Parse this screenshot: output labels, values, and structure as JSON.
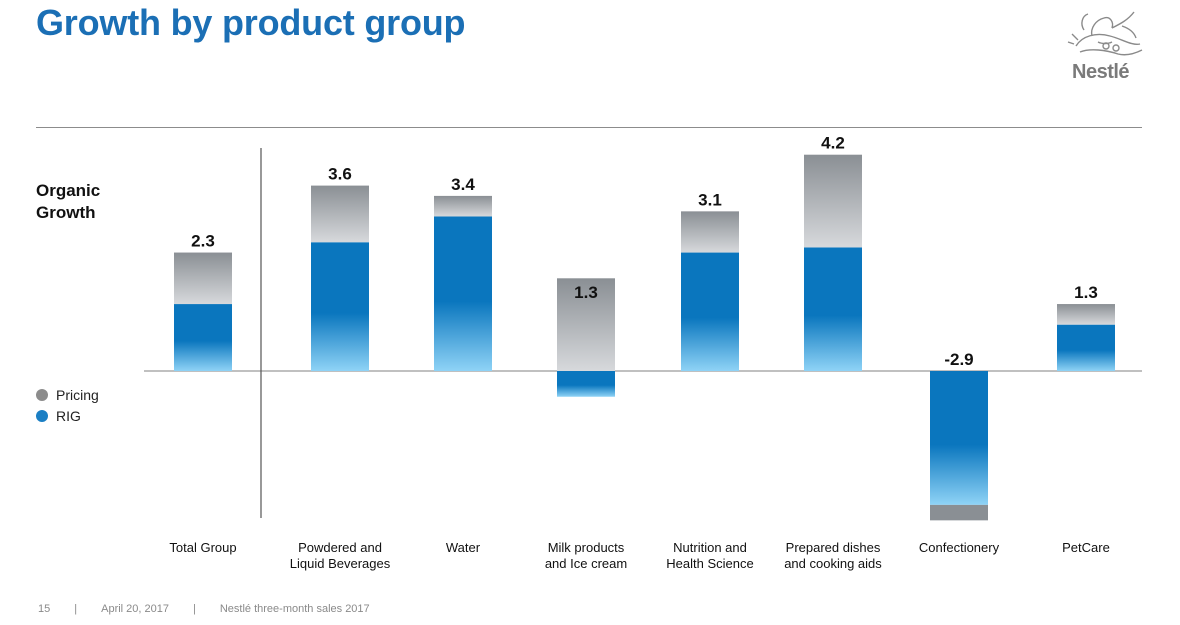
{
  "header": {
    "title": "Growth by product group",
    "logo_text": "Nestlé"
  },
  "chart_labels": {
    "organic_growth": "Organic\nGrowth"
  },
  "legend": [
    {
      "label": "Pricing",
      "color": "#8c8c8c"
    },
    {
      "label": "RIG",
      "color": "#1b7fc4"
    }
  ],
  "footer": {
    "page": "15",
    "date": "April 20, 2017",
    "doc": "Nestlé three-month sales 2017"
  },
  "colors": {
    "brand_blue": "#1b6fb5",
    "rig_top": "#0a76be",
    "rig_bottom": "#8fd3f6",
    "pricing_top": "#8a8f94",
    "pricing_bottom": "#d7d9dc"
  },
  "chart_data": {
    "type": "bar",
    "stacked": true,
    "title": "Growth by product group",
    "ylabel": "Organic Growth",
    "categories": [
      "Total Group",
      "Powdered and\nLiquid Beverages",
      "Water",
      "Milk products\nand Ice cream",
      "Nutrition and\nHealth Science",
      "Prepared dishes\nand cooking aids",
      "Confectionery",
      "PetCare"
    ],
    "totals": [
      2.3,
      3.6,
      3.4,
      1.3,
      3.1,
      4.2,
      -2.9,
      1.3
    ],
    "totals_labels": [
      "2.3",
      "3.6",
      "3.4",
      "1.3",
      "3.1",
      "4.2",
      "-2.9",
      "1.3"
    ],
    "series": [
      {
        "name": "RIG",
        "values": [
          1.3,
          2.5,
          3.0,
          -0.5,
          2.3,
          2.4,
          -2.6,
          0.9
        ]
      },
      {
        "name": "Pricing",
        "values": [
          1.0,
          1.1,
          0.4,
          1.8,
          0.8,
          1.8,
          -0.3,
          0.4
        ]
      }
    ],
    "ylim": [
      -2.9,
      4.2
    ],
    "grid": false,
    "legend": "left"
  }
}
